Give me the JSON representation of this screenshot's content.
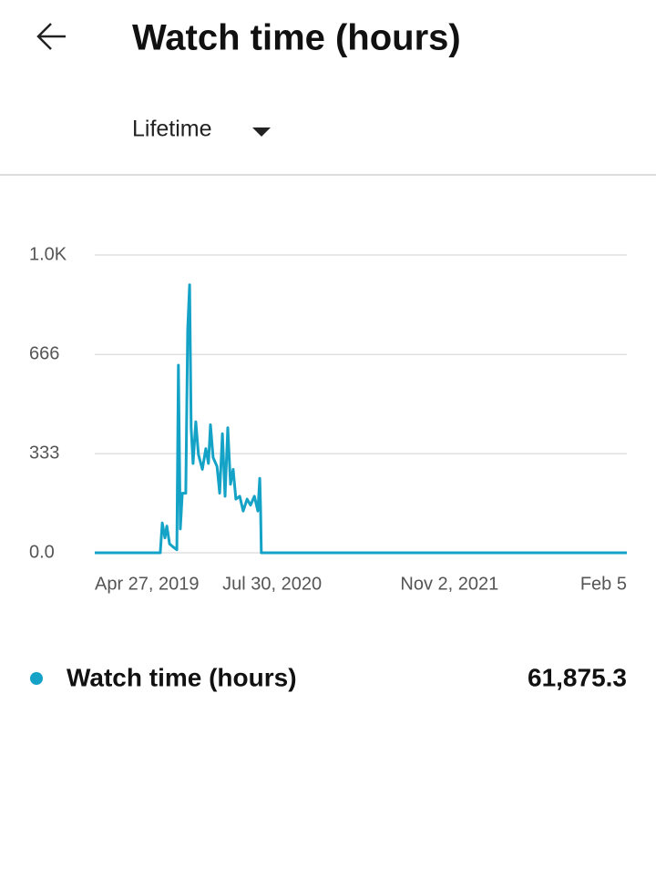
{
  "header": {
    "title": "Watch time (hours)"
  },
  "filter": {
    "label": "Lifetime"
  },
  "chart_data": {
    "type": "line",
    "x": [
      0,
      170,
      175,
      182,
      187,
      194,
      203,
      213,
      217,
      222,
      227,
      236,
      241,
      246,
      250,
      255,
      262,
      269,
      279,
      288,
      295,
      300,
      307,
      317,
      324,
      331,
      338,
      345,
      352,
      359,
      366,
      376,
      385,
      395,
      404,
      414,
      423,
      428,
      430,
      432,
      1380
    ],
    "series": [
      {
        "name": "Watch time (hours)",
        "color": "#14a3c7",
        "values": [
          0,
          0,
          100,
          50,
          90,
          30,
          20,
          10,
          630,
          80,
          200,
          200,
          750,
          900,
          420,
          300,
          440,
          330,
          280,
          350,
          300,
          430,
          320,
          290,
          200,
          400,
          190,
          420,
          230,
          280,
          180,
          190,
          140,
          180,
          160,
          190,
          140,
          250,
          150,
          0,
          0
        ]
      }
    ],
    "xlim": [
      0,
      1380
    ],
    "xticks": [
      {
        "value": 0,
        "label": "Apr 27, 2019"
      },
      {
        "value": 460,
        "label": "Jul 30, 2020"
      },
      {
        "value": 920,
        "label": "Nov 2, 2021"
      },
      {
        "value": 1380,
        "label": "Feb 5"
      }
    ],
    "ylim": [
      0,
      1000
    ],
    "yticks": [
      {
        "value": 0,
        "label": "0.0"
      },
      333,
      666,
      {
        "value": 1000,
        "label": "1.0K"
      }
    ],
    "grid": true
  },
  "summary": {
    "total": "61,875.3"
  }
}
